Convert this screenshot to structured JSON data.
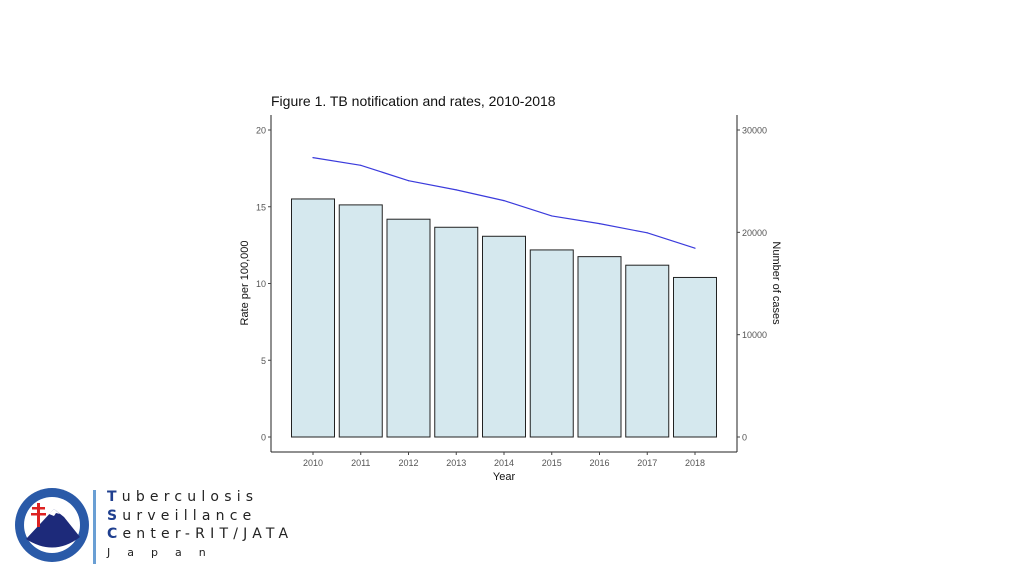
{
  "chart_data": {
    "type": "bar",
    "title": "Figure 1. TB notification and rates, 2010-2018",
    "xlabel": "Year",
    "ylabel": "Rate per 100,000",
    "y2label": "Number of cases",
    "categories": [
      "2010",
      "2011",
      "2012",
      "2013",
      "2014",
      "2015",
      "2016",
      "2017",
      "2018"
    ],
    "series": [
      {
        "name": "Number of cases",
        "type": "bar",
        "axis": "right",
        "color": "#d5e8ee",
        "values": [
          23261,
          22681,
          21283,
          20495,
          19615,
          18280,
          17625,
          16789,
          15590
        ]
      },
      {
        "name": "Rate per 100,000",
        "type": "line",
        "axis": "left",
        "color": "#3b3bdc",
        "values": [
          18.2,
          17.7,
          16.7,
          16.1,
          15.4,
          14.4,
          13.9,
          13.3,
          12.3
        ]
      }
    ],
    "ylim": [
      0,
      20
    ],
    "y2lim": [
      0,
      30000
    ],
    "yticks": [
      "0",
      "5",
      "10",
      "15",
      "20"
    ],
    "y2ticks": [
      "0",
      "10000",
      "20000",
      "30000"
    ],
    "grid": false,
    "legend": "none"
  },
  "branding": {
    "line1_cap": "T",
    "line1_rest": "uberculosis",
    "line2_cap": "S",
    "line2_rest": "urveillance",
    "line3_cap": "C",
    "line3_rest": "enter-RIT/JATA",
    "line4": "Japan",
    "logo_text": "RESEARCH INSTITUTE OF TUBERCULOSIS JAPAN ANTI-TUBERCULOSIS ASSOCIATION"
  }
}
